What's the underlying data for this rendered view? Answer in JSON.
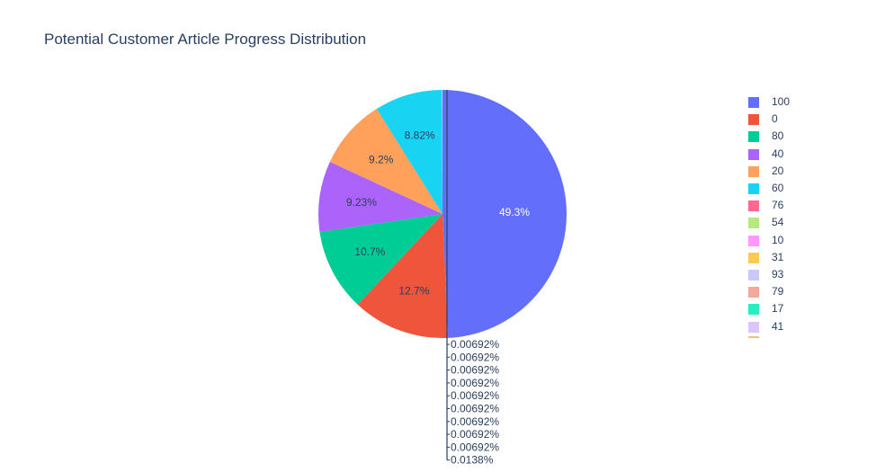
{
  "chart_data": {
    "type": "pie",
    "title": "Potential Customer Article Progress Distribution",
    "slices": [
      {
        "label": "100",
        "percent": 49.3,
        "text": "49.3%",
        "color": "#636efa"
      },
      {
        "label": "0",
        "percent": 12.7,
        "text": "12.7%",
        "color": "#EF553B"
      },
      {
        "label": "80",
        "percent": 10.7,
        "text": "10.7%",
        "color": "#00cc96"
      },
      {
        "label": "40",
        "percent": 9.23,
        "text": "9.23%",
        "color": "#ab63fa"
      },
      {
        "label": "20",
        "percent": 9.2,
        "text": "9.2%",
        "color": "#FFA15A"
      },
      {
        "label": "60",
        "percent": 8.82,
        "text": "8.82%",
        "color": "#19d3f3"
      },
      {
        "label": "76",
        "percent": 0.00692,
        "text": "0.00692%",
        "color": "#FF6692"
      },
      {
        "label": "54",
        "percent": 0.00692,
        "text": "0.00692%",
        "color": "#B6E880"
      },
      {
        "label": "10",
        "percent": 0.00692,
        "text": "0.00692%",
        "color": "#FF97FF"
      },
      {
        "label": "31",
        "percent": 0.00692,
        "text": "0.00692%",
        "color": "#FECB52"
      },
      {
        "label": "93",
        "percent": 0.00692,
        "text": "0.00692%",
        "color": "#c6c9f9"
      },
      {
        "label": "79",
        "percent": 0.00692,
        "text": "0.00692%",
        "color": "#f2a99a"
      },
      {
        "label": "17",
        "percent": 0.00692,
        "text": "0.00692%",
        "color": "#26f0c2"
      },
      {
        "label": "41",
        "percent": 0.00692,
        "text": "0.00692%",
        "color": "#dcc4fc"
      },
      {
        "label": "",
        "percent": 0.00692,
        "text": "0.00692%",
        "color": "#ffd9b5"
      },
      {
        "label": "",
        "percent": 0.0138,
        "text": "0.0138%",
        "color": "#a6ecf9"
      }
    ],
    "legend_position": "right",
    "sort": "descending",
    "direction": "clockwise"
  }
}
